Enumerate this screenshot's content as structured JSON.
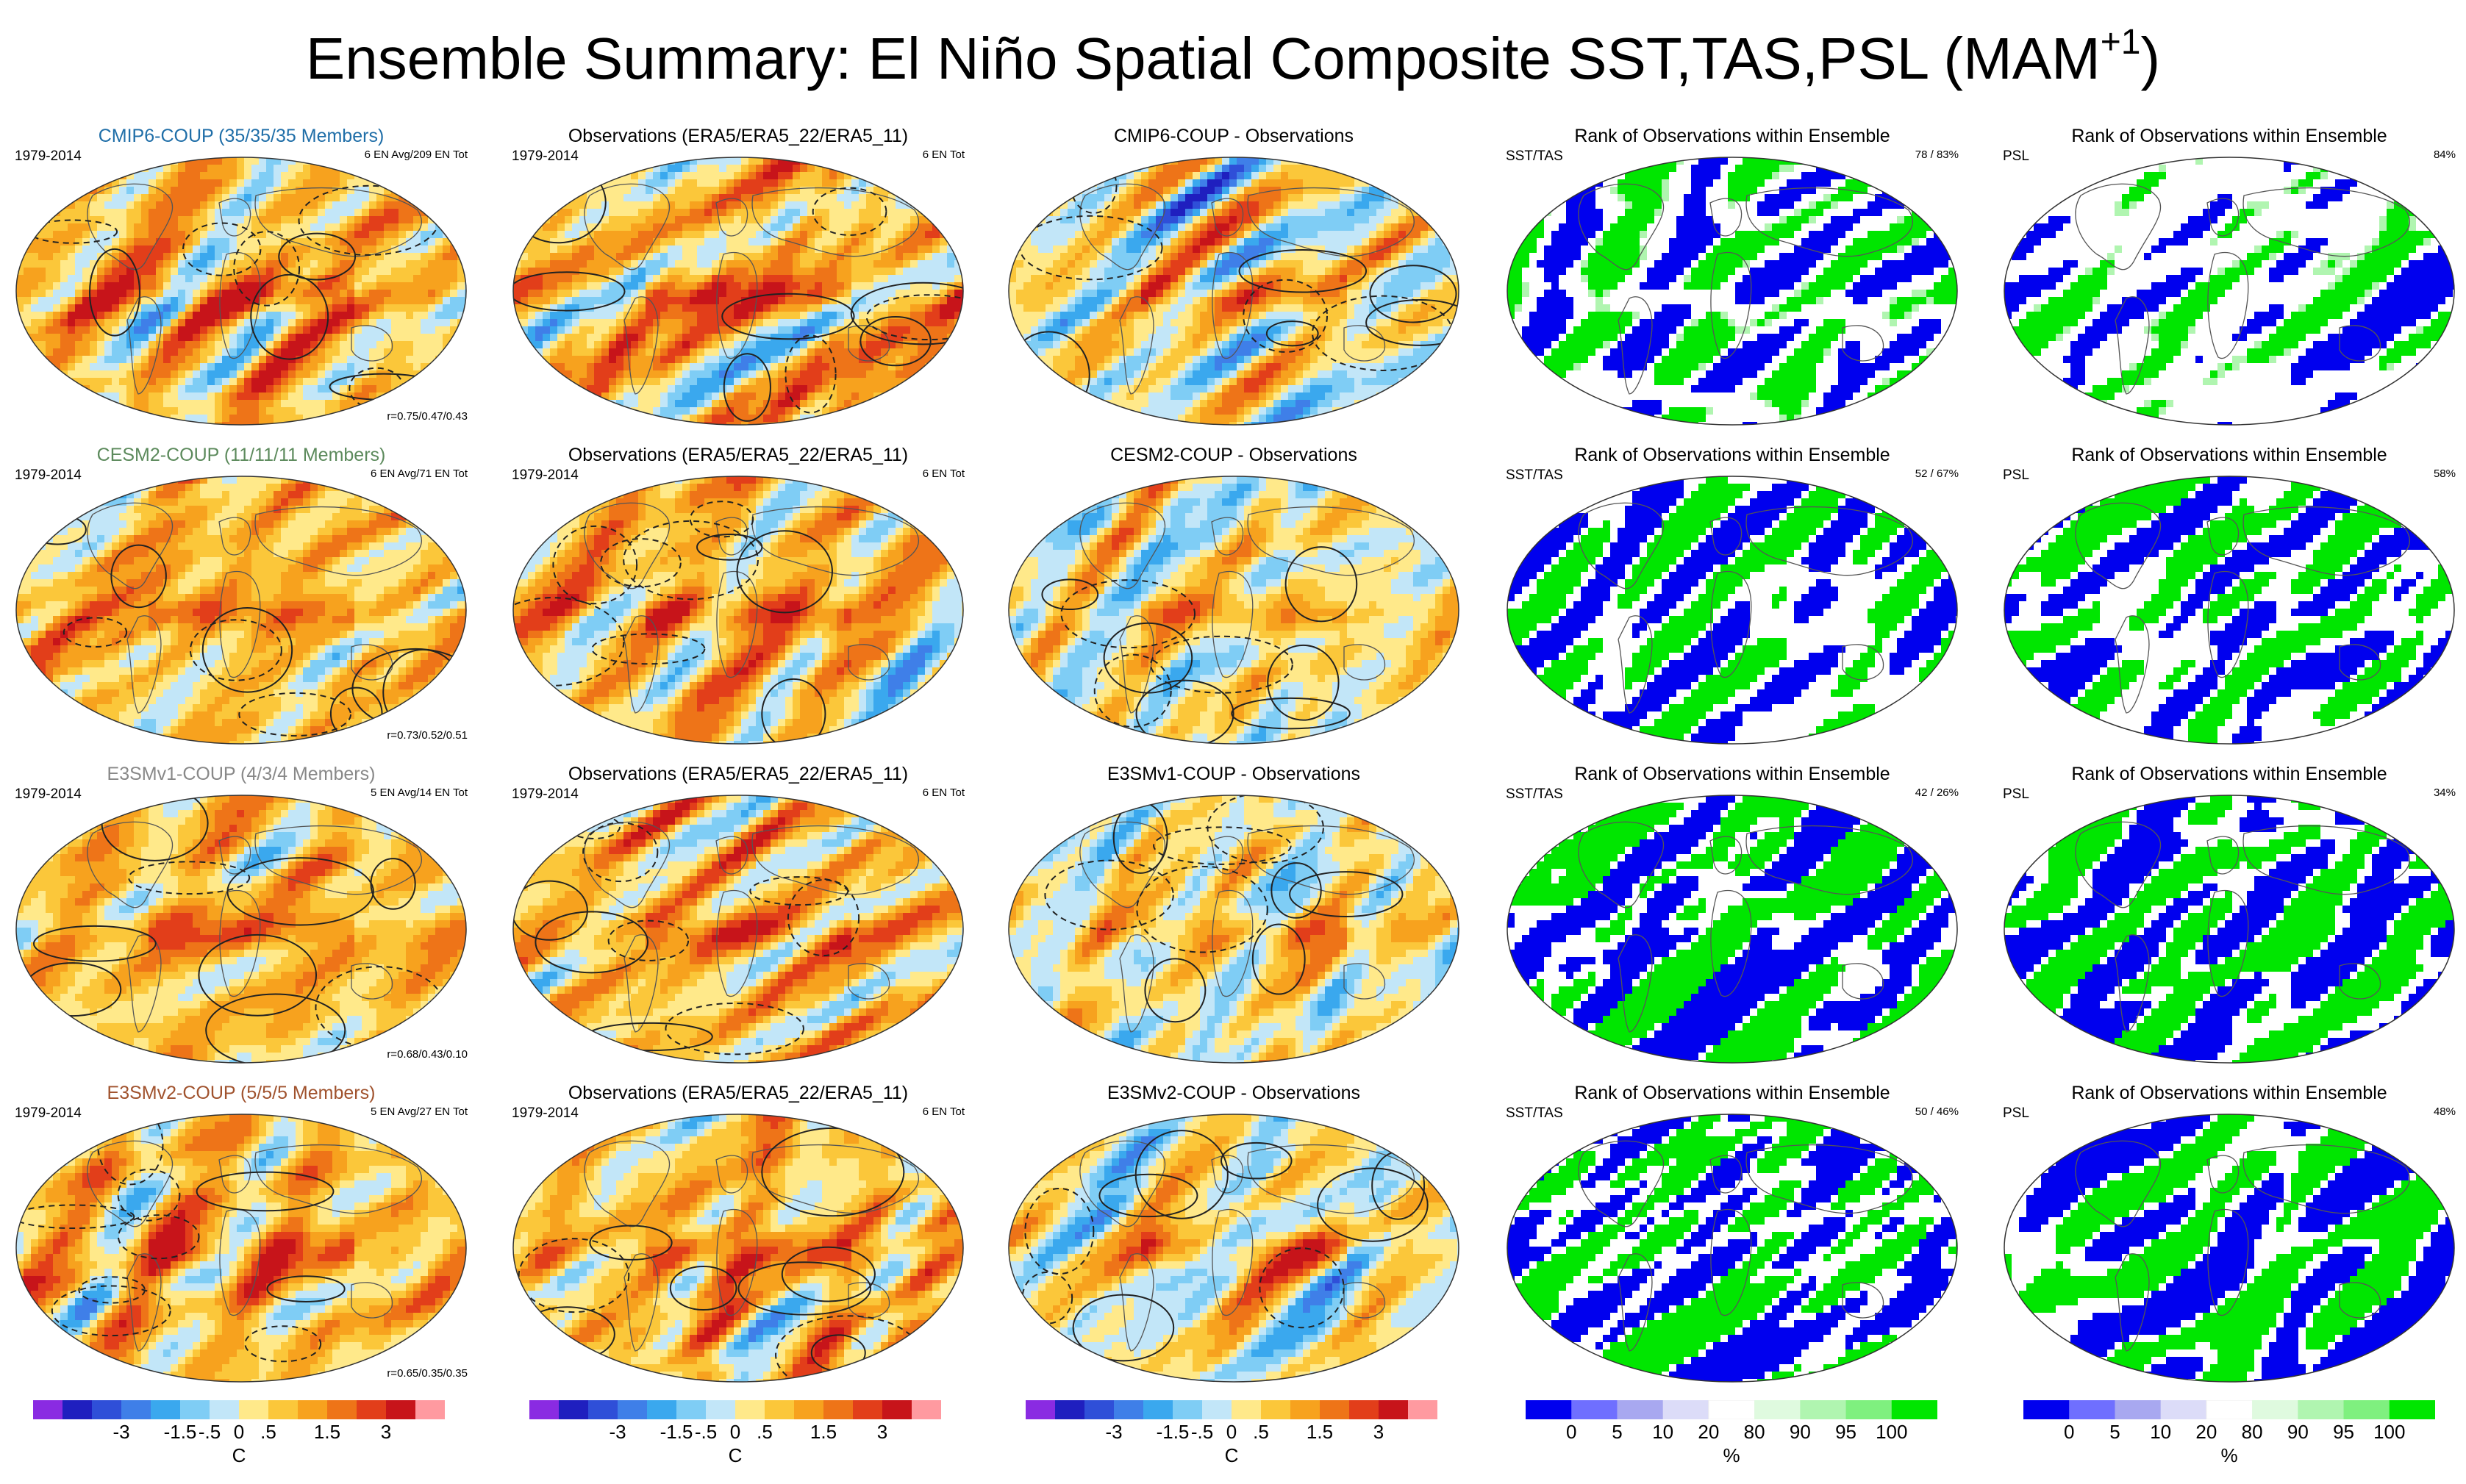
{
  "title": {
    "main": "Ensemble Summary: El Niño Spatial Composite SST,TAS,PSL (MAM",
    "sup": "+1",
    "close": ")"
  },
  "colors": {
    "sst": [
      "#8a2be2",
      "#1f1fbf",
      "#2f4fd8",
      "#3f7fe8",
      "#3aa8ee",
      "#7fcdf5",
      "#c2e6f8",
      "#ffe98a",
      "#fbc73a",
      "#f7a21e",
      "#ee7418",
      "#e23e1a",
      "#c7141a",
      "#ff9aa0"
    ],
    "rank": [
      "#0000ee",
      "#6f6fff",
      "#a8a8f0",
      "#dcdcf8",
      "#ffffff",
      "#dffadf",
      "#b0f5b0",
      "#7ff07f",
      "#00e600"
    ]
  },
  "rows": [
    {
      "model": {
        "title": "CMIP6-COUP (35/35/35 Members)",
        "title_color": "#1f6ea8",
        "period": "1979-2014",
        "info": "6 EN Avg/209 EN Tot",
        "corr": "r=0.75/0.47/0.43"
      },
      "obs": {
        "title": "Observations (ERA5/ERA5_22/ERA5_11)",
        "period": "1979-2014",
        "info": "6 EN Tot"
      },
      "diff": {
        "title": "CMIP6-COUP - Observations"
      },
      "rank_sst": {
        "title": "Rank of Observations within Ensemble",
        "label": "SST/TAS",
        "pct": "78 /  83%"
      },
      "rank_psl": {
        "title": "Rank of Observations within Ensemble",
        "label": "PSL",
        "pct": "84%"
      }
    },
    {
      "model": {
        "title": "CESM2-COUP (11/11/11 Members)",
        "title_color": "#5c8a5c",
        "period": "1979-2014",
        "info": "6 EN Avg/71 EN Tot",
        "corr": "r=0.73/0.52/0.51"
      },
      "obs": {
        "title": "Observations (ERA5/ERA5_22/ERA5_11)",
        "period": "1979-2014",
        "info": "6 EN Tot"
      },
      "diff": {
        "title": "CESM2-COUP - Observations"
      },
      "rank_sst": {
        "title": "Rank of Observations within Ensemble",
        "label": "SST/TAS",
        "pct": "52 /  67%"
      },
      "rank_psl": {
        "title": "Rank of Observations within Ensemble",
        "label": "PSL",
        "pct": "58%"
      }
    },
    {
      "model": {
        "title": "E3SMv1-COUP (4/3/4 Members)",
        "title_color": "#888888",
        "period": "1979-2014",
        "info": "5 EN Avg/14 EN Tot",
        "corr": "r=0.68/0.43/0.10"
      },
      "obs": {
        "title": "Observations (ERA5/ERA5_22/ERA5_11)",
        "period": "1979-2014",
        "info": "6 EN Tot"
      },
      "diff": {
        "title": "E3SMv1-COUP - Observations"
      },
      "rank_sst": {
        "title": "Rank of Observations within Ensemble",
        "label": "SST/TAS",
        "pct": "42 /  26%"
      },
      "rank_psl": {
        "title": "Rank of Observations within Ensemble",
        "label": "PSL",
        "pct": "34%"
      }
    },
    {
      "model": {
        "title": "E3SMv2-COUP (5/5/5 Members)",
        "title_color": "#a0522d",
        "period": "1979-2014",
        "info": "5 EN Avg/27 EN Tot",
        "corr": "r=0.65/0.35/0.35"
      },
      "obs": {
        "title": "Observations (ERA5/ERA5_22/ERA5_11)",
        "period": "1979-2014",
        "info": "6 EN Tot"
      },
      "diff": {
        "title": "E3SMv2-COUP - Observations"
      },
      "rank_sst": {
        "title": "Rank of Observations within Ensemble",
        "label": "SST/TAS",
        "pct": "50 /  46%"
      },
      "rank_psl": {
        "title": "Rank of Observations within Ensemble",
        "label": "PSL",
        "pct": "48%"
      }
    }
  ],
  "colorbars": {
    "sst": {
      "ticks": [
        "-3",
        "-1.5",
        "-.5",
        "0",
        ".5",
        "1.5",
        "3"
      ],
      "unit": "C"
    },
    "rank": {
      "ticks": [
        "0",
        "5",
        "10",
        "20",
        "80",
        "90",
        "95",
        "100"
      ],
      "unit": "%"
    }
  }
}
